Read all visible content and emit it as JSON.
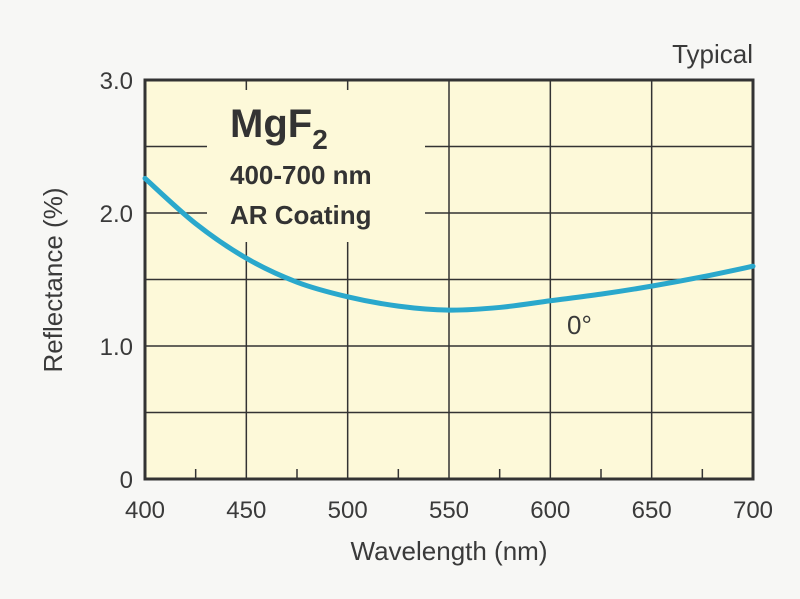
{
  "chart_data": {
    "type": "line",
    "title": "MgF2",
    "title_main": "MgF",
    "title_subscript": "2",
    "subtitle_lines": [
      "400-700 nm",
      "AR Coating"
    ],
    "corner_note": "Typical",
    "xlabel": "Wavelength (nm)",
    "ylabel": "Reflectance (%)",
    "xlim": [
      400,
      700
    ],
    "ylim": [
      0,
      3.0
    ],
    "x_ticks": [
      "400",
      "450",
      "500",
      "550",
      "600",
      "650",
      "700"
    ],
    "y_ticks": [
      "0",
      "1.0",
      "2.0",
      "3.0"
    ],
    "grid": true,
    "background_color": "#fdf9d9",
    "series": [
      {
        "name": "0°",
        "color": "#2aa8cc",
        "x": [
          400,
          425,
          450,
          475,
          500,
          525,
          550,
          575,
          600,
          625,
          650,
          675,
          700
        ],
        "y": [
          2.26,
          1.92,
          1.66,
          1.48,
          1.37,
          1.3,
          1.27,
          1.29,
          1.34,
          1.39,
          1.45,
          1.52,
          1.6
        ]
      }
    ]
  }
}
